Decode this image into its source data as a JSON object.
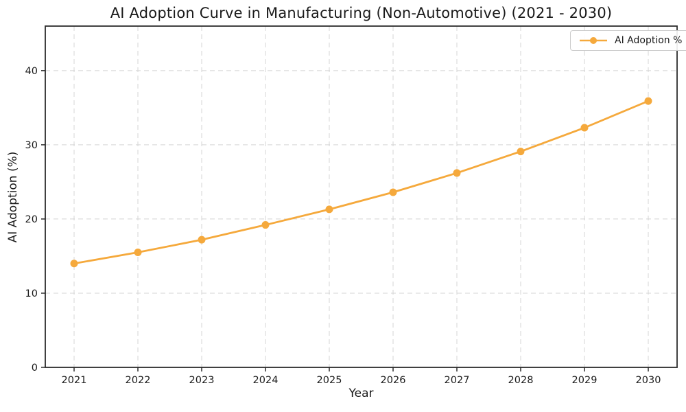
{
  "chart_data": {
    "type": "line",
    "title": "AI Adoption Curve in Manufacturing (Non-Automotive) (2021 - 2030)",
    "xlabel": "Year",
    "ylabel": "AI Adoption (%)",
    "categories": [
      "2021",
      "2022",
      "2023",
      "2024",
      "2025",
      "2026",
      "2027",
      "2028",
      "2029",
      "2030"
    ],
    "series": [
      {
        "name": "AI Adoption %",
        "values": [
          14.0,
          15.5,
          17.2,
          19.2,
          21.3,
          23.6,
          26.2,
          29.1,
          32.3,
          35.9
        ],
        "color": "#F5A93C",
        "marker": "circle"
      }
    ],
    "ylim": [
      0,
      46
    ],
    "yticks": [
      0,
      10,
      20,
      30,
      40
    ],
    "grid": true,
    "grid_style": "dashed",
    "legend_position": "upper right"
  },
  "colors": {
    "line": "#F5A93C",
    "grid": "#d4d4d4",
    "spine": "#2b2b2b",
    "text": "#1a1a1a",
    "background": "#ffffff",
    "legend_border": "#cccccc"
  }
}
